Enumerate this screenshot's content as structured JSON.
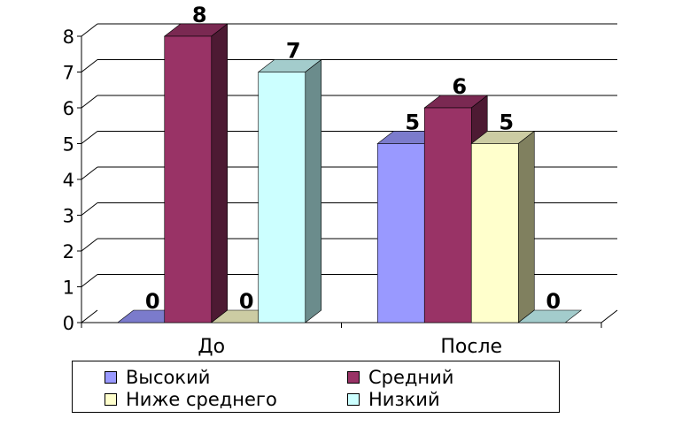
{
  "chart_data": {
    "type": "bar",
    "title": "",
    "xlabel": "",
    "ylabel": "",
    "ylim": [
      0,
      8
    ],
    "yticks": [
      "0",
      "1",
      "2",
      "3",
      "4",
      "5",
      "6",
      "7",
      "8"
    ],
    "categories": [
      "До",
      "После"
    ],
    "series": [
      {
        "name": "Высокий",
        "values": [
          0,
          5
        ],
        "color": "#9999ff",
        "top": "#7b7bcc",
        "side": "#5c5c99"
      },
      {
        "name": "Средний",
        "values": [
          8,
          6
        ],
        "color": "#993366",
        "top": "#7a2952",
        "side": "#4d1a33"
      },
      {
        "name": "Ниже среднего",
        "values": [
          0,
          5
        ],
        "color": "#ffffcc",
        "top": "#cccca3",
        "side": "#80805f"
      },
      {
        "name": "Низкий",
        "values": [
          7,
          0
        ],
        "color": "#ccffff",
        "top": "#a3cccc",
        "side": "#6b8c8c"
      }
    ],
    "data_labels": [
      [
        "0",
        "5"
      ],
      [
        "8",
        "6"
      ],
      [
        "0",
        "5"
      ],
      [
        "7",
        "0"
      ]
    ],
    "grid": true,
    "legend_position": "bottom"
  }
}
